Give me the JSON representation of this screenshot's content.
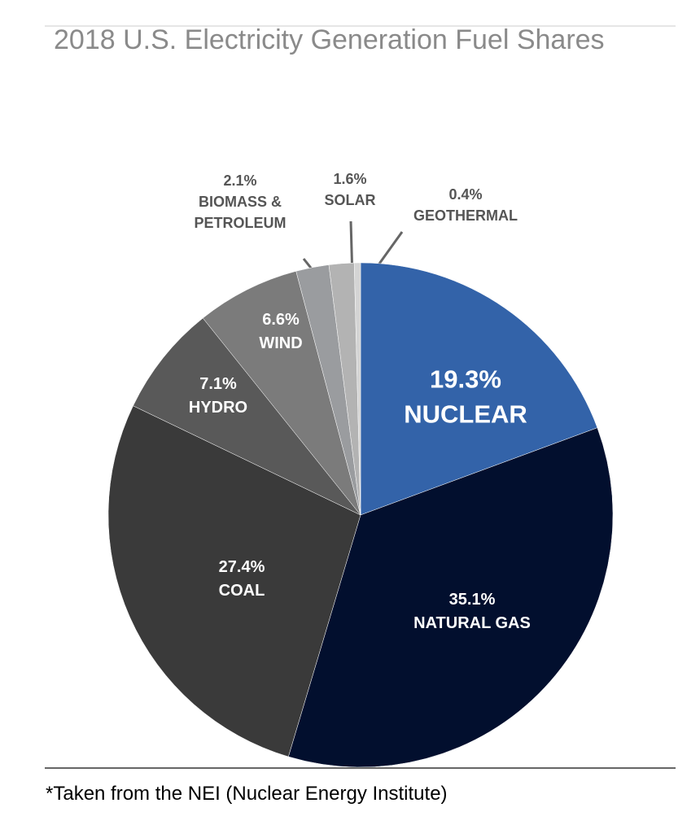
{
  "chart_data": {
    "type": "pie",
    "title": "2018 U.S. Electricity Generation Fuel Shares",
    "categories": [
      "NUCLEAR",
      "NATURAL GAS",
      "COAL",
      "HYDRO",
      "WIND",
      "BIOMASS & PETROLEUM",
      "SOLAR",
      "GEOTHERMAL"
    ],
    "values": [
      19.3,
      35.1,
      27.4,
      7.1,
      6.6,
      2.1,
      1.6,
      0.4
    ],
    "value_labels": [
      "19.3%",
      "35.1%",
      "27.4%",
      "7.1%",
      "6.6%",
      "2.1%",
      "1.6%",
      "0.4%"
    ],
    "colors": [
      "#3363a9",
      "#020f2e",
      "#3a3a3a",
      "#595959",
      "#7b7b7b",
      "#9a9c9f",
      "#b3b3b3",
      "#d4d4d4"
    ],
    "footnote": "*Taken from the NEI (Nuclear Energy Institute)"
  }
}
